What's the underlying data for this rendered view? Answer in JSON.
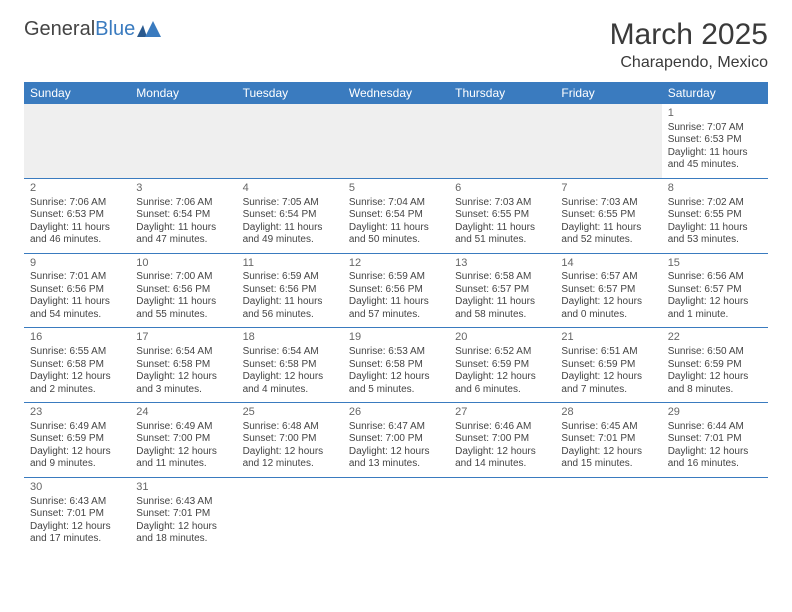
{
  "logo": {
    "text_a": "General",
    "text_b": "Blue"
  },
  "title": "March 2025",
  "location": "Charapendo, Mexico",
  "colors": {
    "header_bg": "#3a7bbf",
    "header_text": "#ffffff",
    "border": "#3a7bbf",
    "empty_bg": "#efefef",
    "body_text": "#444444"
  },
  "day_headers": [
    "Sunday",
    "Monday",
    "Tuesday",
    "Wednesday",
    "Thursday",
    "Friday",
    "Saturday"
  ],
  "days": {
    "1": {
      "sunrise": "7:07 AM",
      "sunset": "6:53 PM",
      "dl_h": 11,
      "dl_m": 45
    },
    "2": {
      "sunrise": "7:06 AM",
      "sunset": "6:53 PM",
      "dl_h": 11,
      "dl_m": 46
    },
    "3": {
      "sunrise": "7:06 AM",
      "sunset": "6:54 PM",
      "dl_h": 11,
      "dl_m": 47
    },
    "4": {
      "sunrise": "7:05 AM",
      "sunset": "6:54 PM",
      "dl_h": 11,
      "dl_m": 49
    },
    "5": {
      "sunrise": "7:04 AM",
      "sunset": "6:54 PM",
      "dl_h": 11,
      "dl_m": 50
    },
    "6": {
      "sunrise": "7:03 AM",
      "sunset": "6:55 PM",
      "dl_h": 11,
      "dl_m": 51
    },
    "7": {
      "sunrise": "7:03 AM",
      "sunset": "6:55 PM",
      "dl_h": 11,
      "dl_m": 52
    },
    "8": {
      "sunrise": "7:02 AM",
      "sunset": "6:55 PM",
      "dl_h": 11,
      "dl_m": 53
    },
    "9": {
      "sunrise": "7:01 AM",
      "sunset": "6:56 PM",
      "dl_h": 11,
      "dl_m": 54
    },
    "10": {
      "sunrise": "7:00 AM",
      "sunset": "6:56 PM",
      "dl_h": 11,
      "dl_m": 55
    },
    "11": {
      "sunrise": "6:59 AM",
      "sunset": "6:56 PM",
      "dl_h": 11,
      "dl_m": 56
    },
    "12": {
      "sunrise": "6:59 AM",
      "sunset": "6:56 PM",
      "dl_h": 11,
      "dl_m": 57
    },
    "13": {
      "sunrise": "6:58 AM",
      "sunset": "6:57 PM",
      "dl_h": 11,
      "dl_m": 58
    },
    "14": {
      "sunrise": "6:57 AM",
      "sunset": "6:57 PM",
      "dl_h": 12,
      "dl_m": 0
    },
    "15": {
      "sunrise": "6:56 AM",
      "sunset": "6:57 PM",
      "dl_h": 12,
      "dl_m": 1
    },
    "16": {
      "sunrise": "6:55 AM",
      "sunset": "6:58 PM",
      "dl_h": 12,
      "dl_m": 2
    },
    "17": {
      "sunrise": "6:54 AM",
      "sunset": "6:58 PM",
      "dl_h": 12,
      "dl_m": 3
    },
    "18": {
      "sunrise": "6:54 AM",
      "sunset": "6:58 PM",
      "dl_h": 12,
      "dl_m": 4
    },
    "19": {
      "sunrise": "6:53 AM",
      "sunset": "6:58 PM",
      "dl_h": 12,
      "dl_m": 5
    },
    "20": {
      "sunrise": "6:52 AM",
      "sunset": "6:59 PM",
      "dl_h": 12,
      "dl_m": 6
    },
    "21": {
      "sunrise": "6:51 AM",
      "sunset": "6:59 PM",
      "dl_h": 12,
      "dl_m": 7
    },
    "22": {
      "sunrise": "6:50 AM",
      "sunset": "6:59 PM",
      "dl_h": 12,
      "dl_m": 8
    },
    "23": {
      "sunrise": "6:49 AM",
      "sunset": "6:59 PM",
      "dl_h": 12,
      "dl_m": 9
    },
    "24": {
      "sunrise": "6:49 AM",
      "sunset": "7:00 PM",
      "dl_h": 12,
      "dl_m": 11
    },
    "25": {
      "sunrise": "6:48 AM",
      "sunset": "7:00 PM",
      "dl_h": 12,
      "dl_m": 12
    },
    "26": {
      "sunrise": "6:47 AM",
      "sunset": "7:00 PM",
      "dl_h": 12,
      "dl_m": 13
    },
    "27": {
      "sunrise": "6:46 AM",
      "sunset": "7:00 PM",
      "dl_h": 12,
      "dl_m": 14
    },
    "28": {
      "sunrise": "6:45 AM",
      "sunset": "7:01 PM",
      "dl_h": 12,
      "dl_m": 15
    },
    "29": {
      "sunrise": "6:44 AM",
      "sunset": "7:01 PM",
      "dl_h": 12,
      "dl_m": 16
    },
    "30": {
      "sunrise": "6:43 AM",
      "sunset": "7:01 PM",
      "dl_h": 12,
      "dl_m": 17
    },
    "31": {
      "sunrise": "6:43 AM",
      "sunset": "7:01 PM",
      "dl_h": 12,
      "dl_m": 18
    }
  },
  "weeks": [
    [
      null,
      null,
      null,
      null,
      null,
      null,
      "1"
    ],
    [
      "2",
      "3",
      "4",
      "5",
      "6",
      "7",
      "8"
    ],
    [
      "9",
      "10",
      "11",
      "12",
      "13",
      "14",
      "15"
    ],
    [
      "16",
      "17",
      "18",
      "19",
      "20",
      "21",
      "22"
    ],
    [
      "23",
      "24",
      "25",
      "26",
      "27",
      "28",
      "29"
    ],
    [
      "30",
      "31",
      null,
      null,
      null,
      null,
      null
    ]
  ],
  "labels": {
    "sunrise": "Sunrise:",
    "sunset": "Sunset:",
    "daylight": "Daylight:",
    "hours": "hours",
    "and": "and",
    "minute": "minute.",
    "minutes": "minutes."
  }
}
